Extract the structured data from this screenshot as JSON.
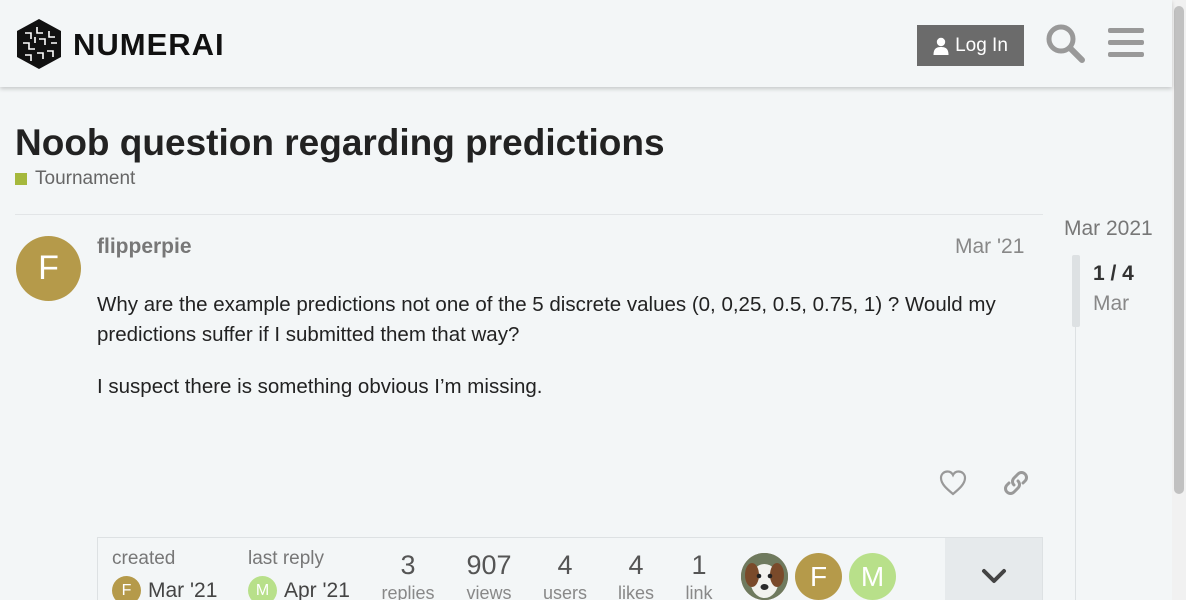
{
  "header": {
    "logo_text": "NUMERAI",
    "login_label": "Log In"
  },
  "topic": {
    "title": "Noob question regarding predictions",
    "category": "Tournament",
    "category_color": "#a5b83c"
  },
  "post": {
    "avatar_letter": "F",
    "avatar_color": "#b59a4a",
    "username": "flipperpie",
    "date": "Mar '21",
    "paragraphs": [
      "Why are the example predictions not one of the 5 discrete values (0, 0,25, 0.5, 0.75, 1) ? Would my predictions suffer if I submitted them that way?",
      "I suspect there is something obvious I’m missing."
    ]
  },
  "topic_map": {
    "created_label": "created",
    "created_avatar": "F",
    "created_date": "Mar '21",
    "last_reply_label": "last reply",
    "last_reply_avatar": "M",
    "last_reply_date": "Apr '21",
    "stats": [
      {
        "value": "3",
        "label": "replies"
      },
      {
        "value": "907",
        "label": "views"
      },
      {
        "value": "4",
        "label": "users"
      },
      {
        "value": "4",
        "label": "likes"
      },
      {
        "value": "1",
        "label": "link"
      }
    ],
    "participants": [
      {
        "letter": "",
        "color": "#8a6a50"
      },
      {
        "letter": "F",
        "color": "#b59a4a"
      },
      {
        "letter": "M",
        "color": "#b8e08a"
      }
    ]
  },
  "timeline": {
    "date": "Mar 2021",
    "count": "1 / 4",
    "month": "Mar"
  }
}
